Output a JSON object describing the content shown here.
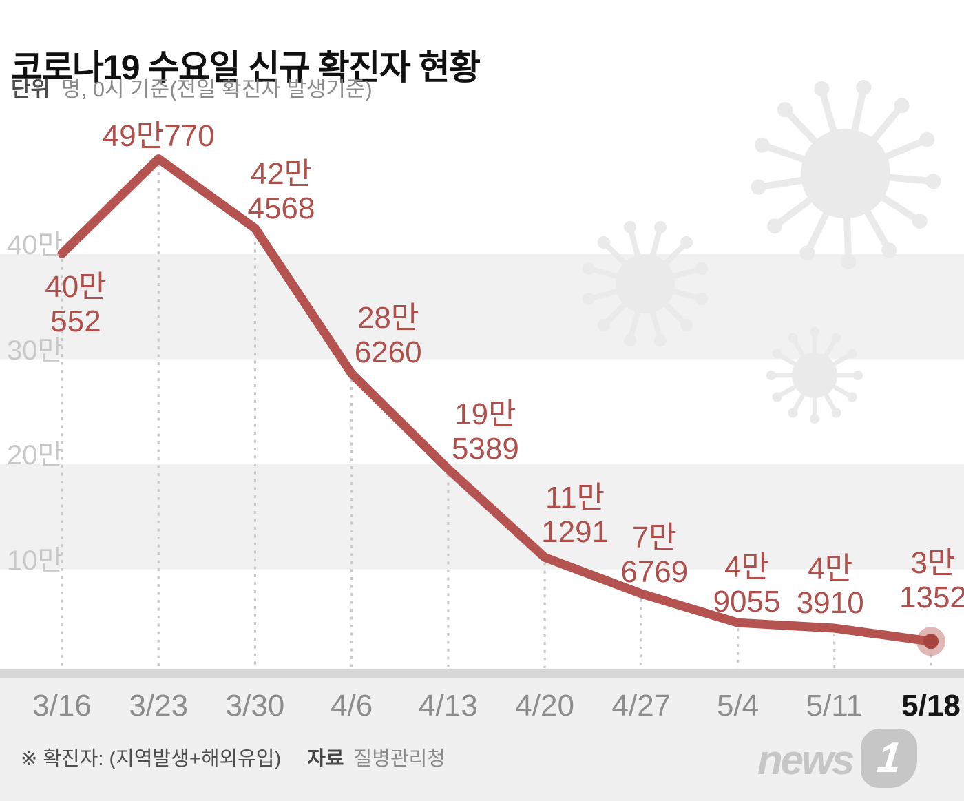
{
  "title": "코로나19 수요일 신규 확진자 현황",
  "subtitle": {
    "unit_label": "단위",
    "unit_desc": "명, 0시 기준(전일 확진자 발생기준)"
  },
  "chart_data": {
    "type": "line",
    "x": [
      "3/16",
      "3/23",
      "3/30",
      "4/6",
      "4/13",
      "4/20",
      "4/27",
      "5/4",
      "5/11",
      "5/18"
    ],
    "values": [
      400552,
      490770,
      424568,
      286260,
      195389,
      111291,
      76769,
      49055,
      43910,
      31352
    ],
    "point_labels": [
      [
        "40만",
        "552"
      ],
      [
        "49만770"
      ],
      [
        "42만",
        "4568"
      ],
      [
        "28만",
        "6260"
      ],
      [
        "19만",
        "5389"
      ],
      [
        "11만",
        "1291"
      ],
      [
        "7만",
        "6769"
      ],
      [
        "4만",
        "9055"
      ],
      [
        "4만",
        "3910"
      ],
      [
        "3만",
        "1352"
      ]
    ],
    "ytick_labels": [
      "40만",
      "30만",
      "20만",
      "10만"
    ],
    "ytick_values": [
      400000,
      300000,
      200000,
      100000
    ],
    "ylim": [
      0,
      550000
    ],
    "xlabel": "",
    "ylabel": "",
    "highlighted_x": "5/18",
    "grid": "alternating horizontal stripes with dotted vertical guides under each point",
    "legend": null,
    "series_color": "#b4534f",
    "label_color": "#b0504c"
  },
  "footer": {
    "note": "※ 확진자: (지역발생+해외유입)",
    "source_label": "자료",
    "source": "질병관리청"
  },
  "logo": {
    "text": "news",
    "badge": "1"
  },
  "colors": {
    "stripe": "#f1f1f1",
    "axis_bar": "#d7d7d7",
    "bottom_bg": "#f0f0f0",
    "grid_dot": "#c9c9c9",
    "ytick": "#c8c8c8",
    "date": "#8d8d8d",
    "date_highlight": "#161616",
    "virus_watermark": "#eaeaea",
    "marker_inner": "#a64440",
    "title": "#101010",
    "subtitle": "#8b8b8b"
  }
}
